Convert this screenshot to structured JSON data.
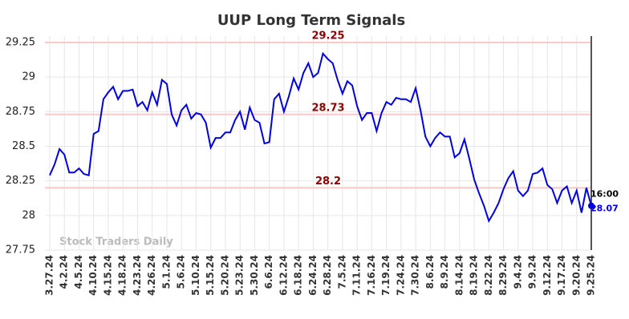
{
  "chart_data": {
    "type": "line",
    "title": "UUP Long Term Signals",
    "categories": [
      "3.27.24",
      null,
      null,
      "4.2.24",
      null,
      null,
      "4.5.24",
      null,
      null,
      "4.10.24",
      null,
      null,
      "4.15.24",
      null,
      null,
      "4.18.24",
      null,
      null,
      "4.23.24",
      null,
      null,
      "4.26.24",
      null,
      null,
      "5.1.24",
      null,
      null,
      "5.6.24",
      null,
      null,
      "5.10.24",
      null,
      null,
      "5.15.24",
      null,
      null,
      "5.20.24",
      null,
      null,
      "5.23.24",
      null,
      null,
      "5.30.24",
      null,
      null,
      "6.6.24",
      null,
      null,
      "6.12.24",
      null,
      null,
      "6.18.24",
      null,
      null,
      "6.24.24",
      null,
      null,
      "6.28.24",
      null,
      null,
      "7.5.24",
      null,
      null,
      "7.11.24",
      null,
      null,
      "7.16.24",
      null,
      null,
      "7.19.24",
      null,
      null,
      "7.24.24",
      null,
      null,
      "7.30.24",
      null,
      null,
      "8.6.24",
      null,
      null,
      "8.9.24",
      null,
      null,
      "8.14.24",
      null,
      null,
      "8.19.24",
      null,
      null,
      "8.22.24",
      null,
      null,
      "8.29.24",
      null,
      null,
      "9.4.24",
      null,
      null,
      "9.9.24",
      null,
      null,
      "9.12.24",
      null,
      null,
      "9.17.24",
      null,
      null,
      "9.20.24",
      null,
      null,
      "9.25.24"
    ],
    "series": [
      {
        "color": "#0000e0",
        "values": [
          28.29,
          28.37,
          28.48,
          28.44,
          28.31,
          28.31,
          28.34,
          28.3,
          28.29,
          28.59,
          28.61,
          28.84,
          28.89,
          28.93,
          28.84,
          28.9,
          28.9,
          28.91,
          28.79,
          28.82,
          28.76,
          28.89,
          28.8,
          28.98,
          28.95,
          28.73,
          28.65,
          28.76,
          28.8,
          28.7,
          28.74,
          28.73,
          28.67,
          28.49,
          28.56,
          28.56,
          28.6,
          28.6,
          28.69,
          28.75,
          28.62,
          28.78,
          28.69,
          28.67,
          28.52,
          28.53,
          28.84,
          28.88,
          28.75,
          28.86,
          28.99,
          28.91,
          29.03,
          29.1,
          29.0,
          29.03,
          29.17,
          29.13,
          29.1,
          28.98,
          28.88,
          28.97,
          28.94,
          28.79,
          28.69,
          28.74,
          28.74,
          28.61,
          28.74,
          28.82,
          28.8,
          28.85,
          28.84,
          28.84,
          28.82,
          28.92,
          28.76,
          28.57,
          28.5,
          28.56,
          28.6,
          28.57,
          28.57,
          28.42,
          28.45,
          28.55,
          28.41,
          28.26,
          28.16,
          28.07,
          27.96,
          28.02,
          28.09,
          28.19,
          28.27,
          28.32,
          28.18,
          28.14,
          28.18,
          28.3,
          28.31,
          28.34,
          28.22,
          28.19,
          28.09,
          28.18,
          28.21,
          28.09,
          28.18,
          28.02,
          28.2,
          28.07
        ]
      }
    ],
    "levels": [
      29.25,
      28.73,
      28.2
    ],
    "level_color": "#8b0000",
    "last_time": "16:00",
    "ylim": [
      27.75,
      29.25
    ],
    "yticks": [
      27.75,
      28,
      28.25,
      28.5,
      28.75,
      29,
      29.25
    ],
    "grid": true,
    "watermark": "Stock Traders Daily"
  }
}
